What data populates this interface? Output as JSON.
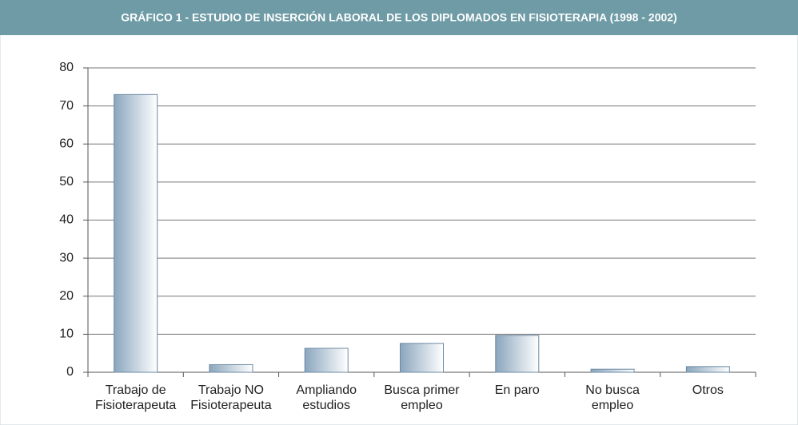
{
  "chart_data": {
    "type": "bar",
    "title": "GRÁFICO 1 - ESTUDIO DE INSERCIÓN LABORAL DE LOS DIPLOMADOS EN FISIOTERAPIA (1998 - 2002)",
    "categories": [
      [
        "Trabajo de",
        "Fisioterapeuta"
      ],
      [
        "Trabajo NO",
        "Fisioterapeuta"
      ],
      [
        "Ampliando",
        "estudios"
      ],
      [
        "Busca primer",
        "empleo"
      ],
      [
        "En paro"
      ],
      [
        "No busca",
        "empleo"
      ],
      [
        "Otros"
      ]
    ],
    "values": [
      73,
      2,
      6.3,
      7.6,
      9.7,
      0.8,
      1.5
    ],
    "color": "#8aa6bd",
    "ylim": [
      0,
      80
    ],
    "yticks": [
      0,
      10,
      20,
      30,
      40,
      50,
      60,
      70,
      80
    ],
    "grid": true
  }
}
